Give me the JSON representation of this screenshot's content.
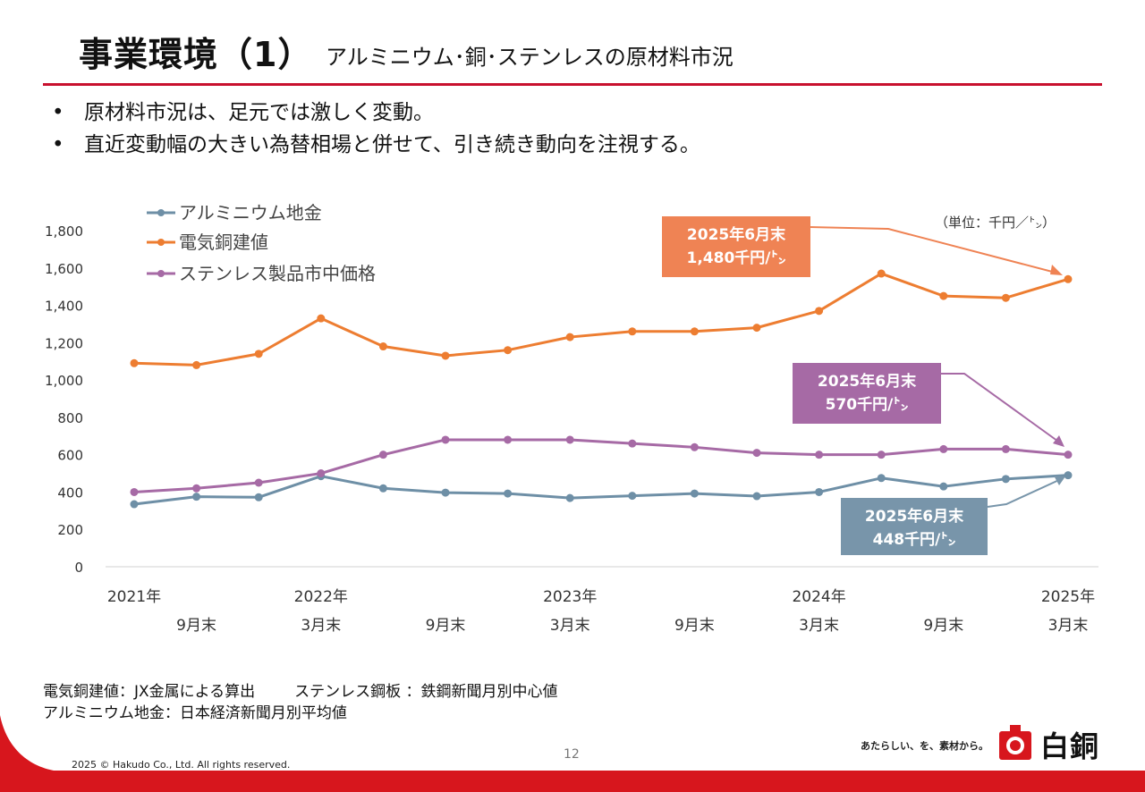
{
  "header": {
    "title": "事業環境（1）",
    "subtitle": "アルミニウム･銅･ステンレスの原材料市況"
  },
  "bullets": [
    "原材料市況は、足元では激しく変動。",
    "直近変動幅の大きい為替相場と併せて、引き続き動向を注視する。"
  ],
  "bullet_marker": "•",
  "chart_data": {
    "type": "line",
    "unit_label": "（単位：千円／㌧）",
    "ylim": [
      0,
      1800
    ],
    "yticks": [
      0,
      200,
      400,
      600,
      800,
      1000,
      1200,
      1400,
      1600,
      1800
    ],
    "ytick_labels": [
      "0",
      "200",
      "400",
      "600",
      "800",
      "1,000",
      "1,200",
      "1,400",
      "1,600",
      "1,800"
    ],
    "grid": false,
    "legend_position": "top-left",
    "x_labels_top": [
      {
        "label": "2021年",
        "index": 0
      },
      {
        "label": "2022年",
        "index": 3
      },
      {
        "label": "2023年",
        "index": 7
      },
      {
        "label": "2024年",
        "index": 11
      },
      {
        "label": "2025年",
        "index": 15
      }
    ],
    "x_labels_bottom": [
      {
        "label": "9月末",
        "index": 1
      },
      {
        "label": "3月末",
        "index": 3
      },
      {
        "label": "9月末",
        "index": 5
      },
      {
        "label": "3月末",
        "index": 7
      },
      {
        "label": "9月末",
        "index": 9
      },
      {
        "label": "3月末",
        "index": 11
      },
      {
        "label": "9月末",
        "index": 13
      },
      {
        "label": "3月末",
        "index": 15
      }
    ],
    "series": [
      {
        "name": "アルミニウム地金",
        "color": "#6e8fa6",
        "values": [
          335,
          375,
          372,
          485,
          420,
          397,
          392,
          368,
          380,
          392,
          378,
          400,
          475,
          430,
          470,
          490
        ]
      },
      {
        "name": "電気銅建値",
        "color": "#ed7d31",
        "values": [
          1090,
          1080,
          1140,
          1330,
          1180,
          1130,
          1160,
          1230,
          1260,
          1260,
          1280,
          1370,
          1570,
          1450,
          1440,
          1540
        ]
      },
      {
        "name": "ステンレス製品市中価格",
        "color": "#a66aa5",
        "values": [
          400,
          420,
          450,
          500,
          600,
          680,
          680,
          680,
          660,
          640,
          610,
          600,
          600,
          630,
          630,
          600
        ]
      }
    ],
    "annotations": [
      {
        "line1": "2025年6月末",
        "line2": "1,480千円/㌧",
        "color": "#ef8354"
      },
      {
        "line1": "2025年6月末",
        "line2": "570千円/㌧",
        "color": "#a66aa5"
      },
      {
        "line1": "2025年6月末",
        "line2": "448千円/㌧",
        "color": "#7895aa"
      }
    ]
  },
  "notes": {
    "copper": "電気銅建値：JX金属による算出",
    "stainless": "ステンレス鋼板 ：鉄鋼新聞月別中心値",
    "aluminum": "アルミニウム地金：日本経済新聞月別平均値"
  },
  "footer": {
    "page_number": "12",
    "copyright": "2025 © Hakudo Co., Ltd. All rights reserved.",
    "slogan": "あたらしい、を、素材から。",
    "logo_text": "白銅",
    "logo_icon": "hakudo-logo-icon",
    "accent_color": "#d7161d"
  }
}
